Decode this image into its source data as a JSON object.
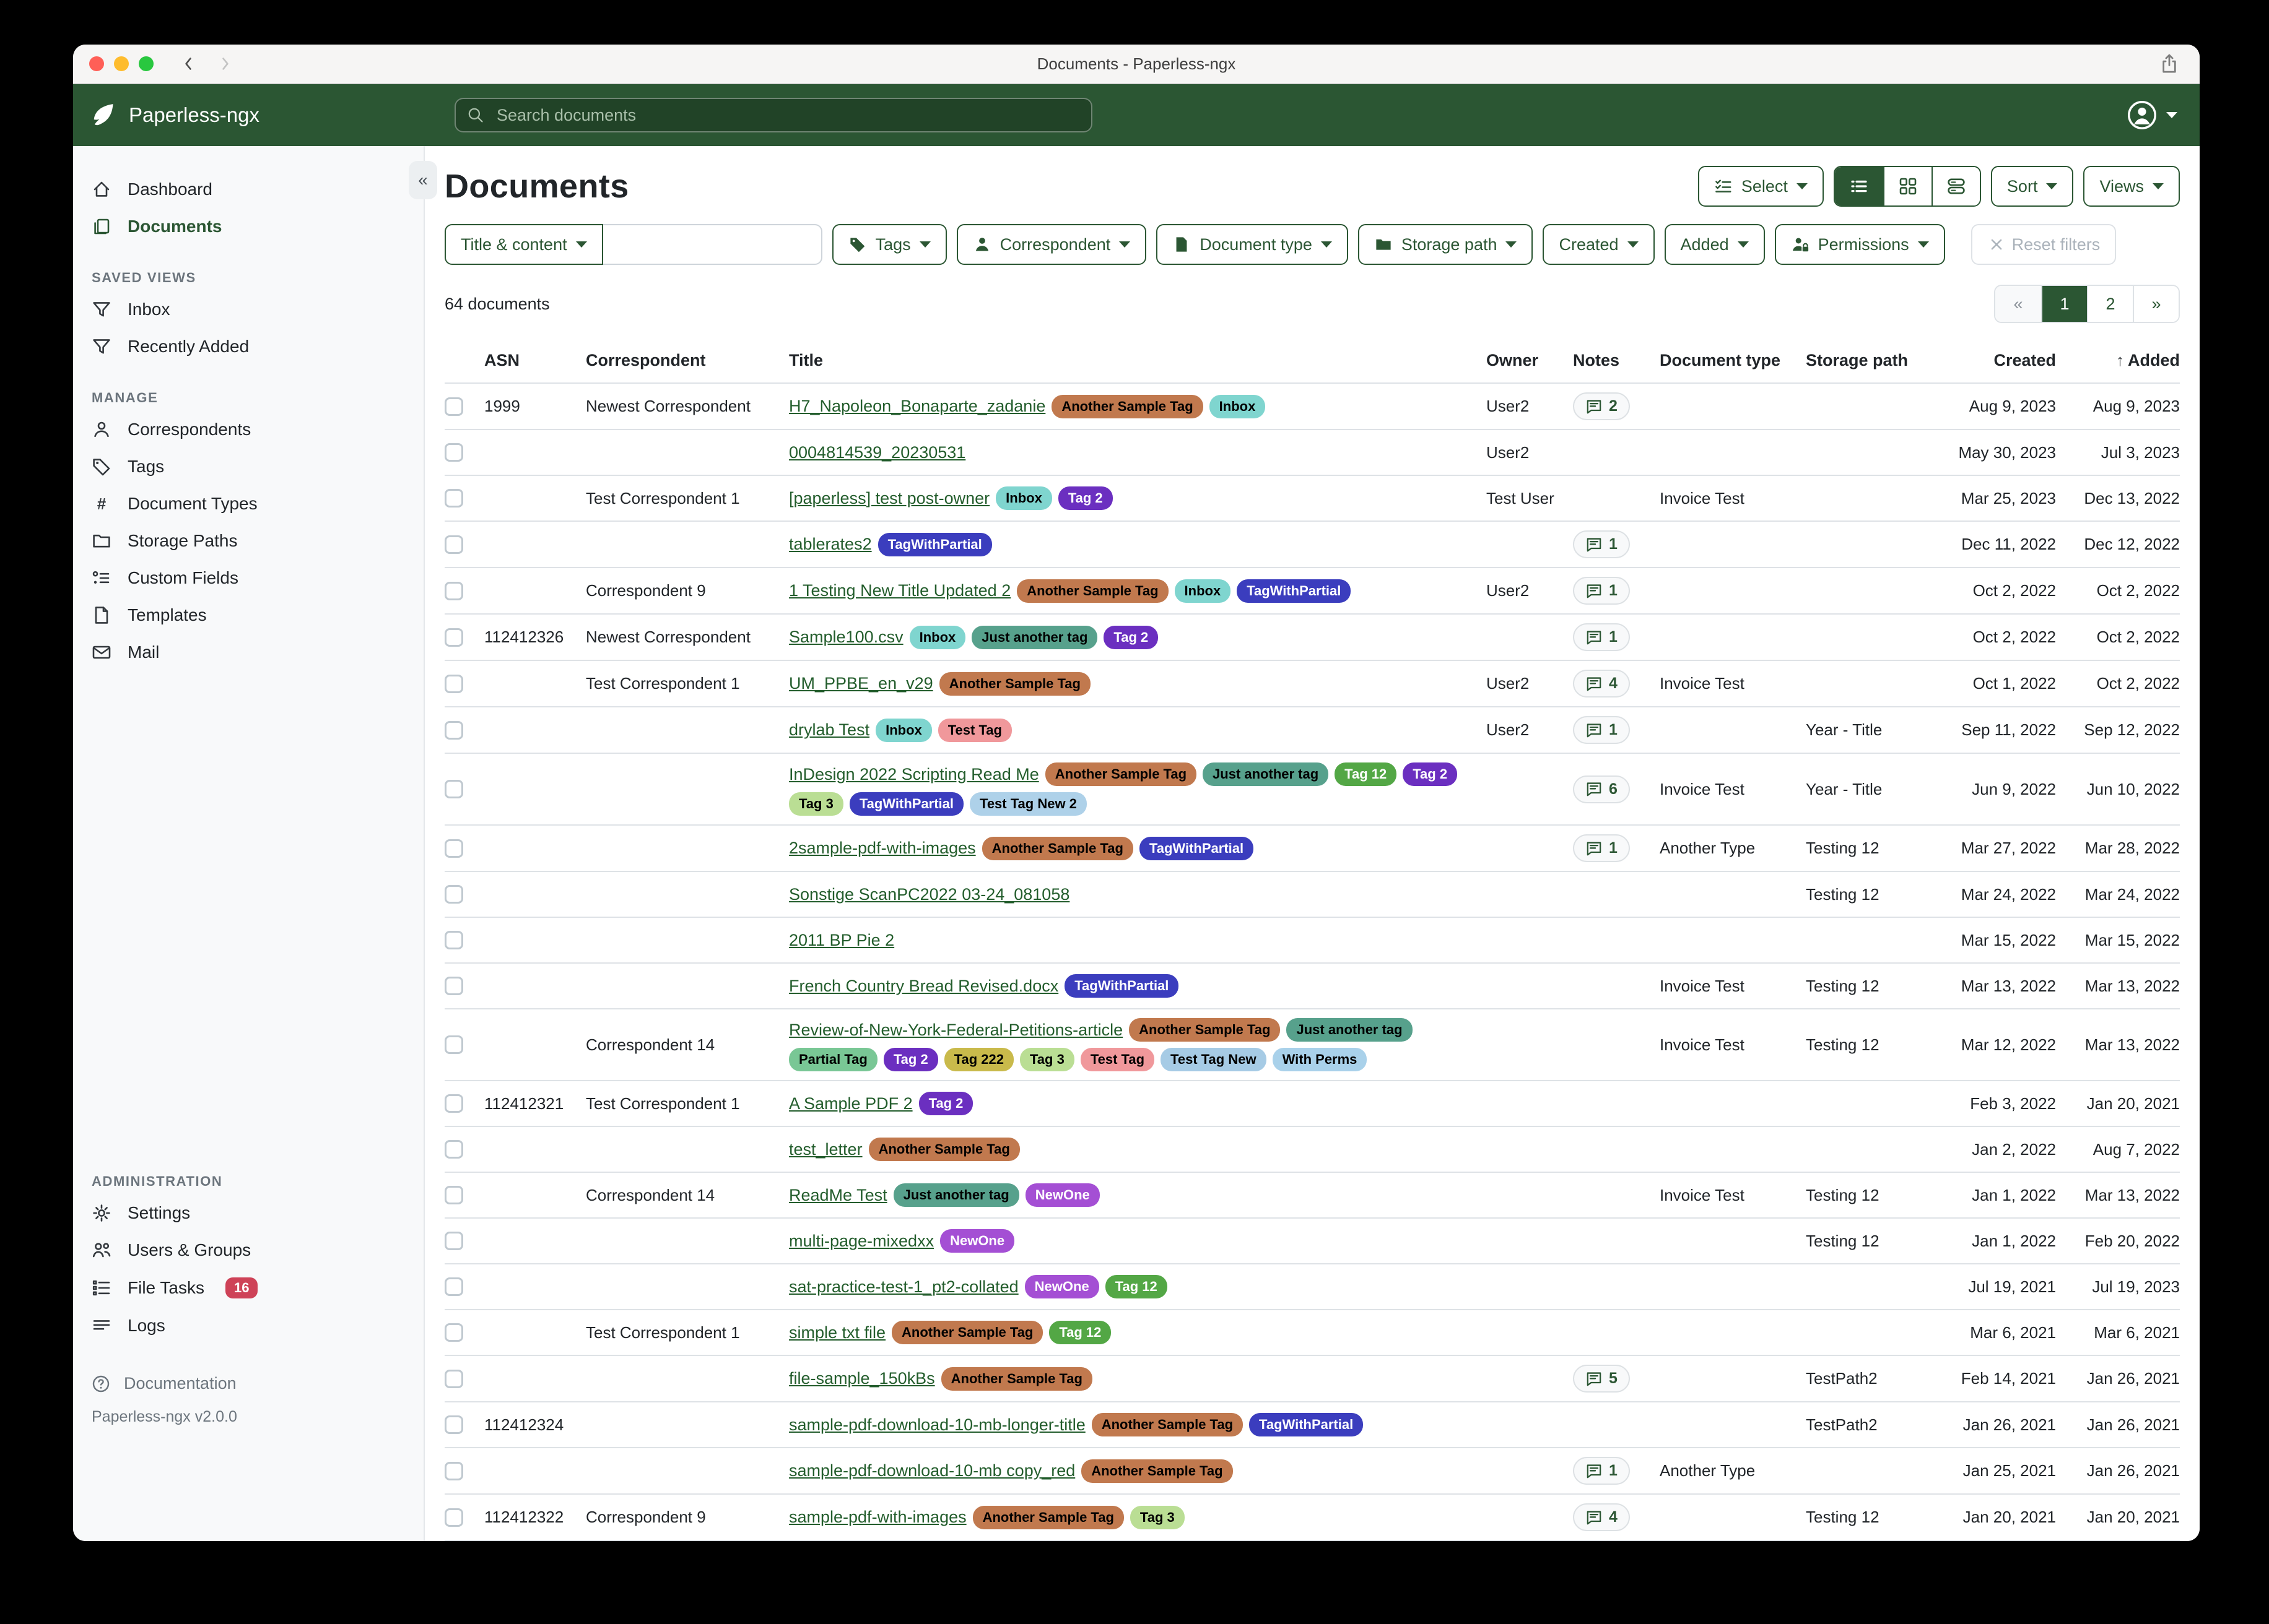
{
  "window": {
    "title": "Documents - Paperless-ngx"
  },
  "navbar": {
    "brand": "Paperless-ngx",
    "search_placeholder": "Search documents"
  },
  "colors": {
    "brand_green": "#2b5633",
    "link_green": "#235d2c",
    "badge_red": "#ce4257"
  },
  "sidebar": {
    "items_top": [
      {
        "label": "Dashboard",
        "icon": "home",
        "active": false
      },
      {
        "label": "Documents",
        "icon": "docs",
        "active": true
      }
    ],
    "sections": [
      {
        "title": "SAVED VIEWS",
        "items": [
          {
            "label": "Inbox",
            "icon": "funnel"
          },
          {
            "label": "Recently Added",
            "icon": "funnel"
          }
        ]
      },
      {
        "title": "MANAGE",
        "items": [
          {
            "label": "Correspondents",
            "icon": "person"
          },
          {
            "label": "Tags",
            "icon": "tag"
          },
          {
            "label": "Document Types",
            "icon": "hash"
          },
          {
            "label": "Storage Paths",
            "icon": "folder"
          },
          {
            "label": "Custom Fields",
            "icon": "fields"
          },
          {
            "label": "Templates",
            "icon": "file"
          },
          {
            "label": "Mail",
            "icon": "envelope"
          }
        ]
      },
      {
        "title": "ADMINISTRATION",
        "items": [
          {
            "label": "Settings",
            "icon": "gear"
          },
          {
            "label": "Users & Groups",
            "icon": "people"
          },
          {
            "label": "File Tasks",
            "icon": "tasks",
            "badge": "16"
          },
          {
            "label": "Logs",
            "icon": "logs"
          }
        ]
      }
    ],
    "footer": {
      "documentation": "Documentation",
      "version": "Paperless-ngx v2.0.0"
    }
  },
  "toolbar": {
    "title": "Documents",
    "select_label": "Select",
    "sort_label": "Sort",
    "views_label": "Views",
    "view_modes": [
      "list-view",
      "grid-view",
      "cards-view"
    ],
    "active_view": "list-view"
  },
  "filters": {
    "field_button": "Title & content",
    "input_value": "",
    "buttons": [
      {
        "label": "Tags",
        "icon": "tag-fill"
      },
      {
        "label": "Correspondent",
        "icon": "person-fill"
      },
      {
        "label": "Document type",
        "icon": "file-fill"
      },
      {
        "label": "Storage path",
        "icon": "folder-fill"
      },
      {
        "label": "Created",
        "icon": null
      },
      {
        "label": "Added",
        "icon": null
      },
      {
        "label": "Permissions",
        "icon": "person-lock"
      }
    ],
    "reset_label": "Reset filters"
  },
  "status": {
    "count_text": "64 documents"
  },
  "pagination": {
    "prev": "«",
    "pages": [
      "1",
      "2"
    ],
    "active": "1",
    "next": "»"
  },
  "tag_colors": {
    "Another Sample Tag": {
      "bg": "#c1794e",
      "fg": "#000000"
    },
    "Inbox": {
      "bg": "#7fd5cf",
      "fg": "#000000"
    },
    "Tag 2": {
      "bg": "#6b2fc0",
      "fg": "#ffffff"
    },
    "TagWithPartial": {
      "bg": "#3b3dbe",
      "fg": "#ffffff"
    },
    "Just another tag": {
      "bg": "#57a18c",
      "fg": "#000000"
    },
    "Tag 12": {
      "bg": "#53a745",
      "fg": "#ffffff"
    },
    "Tag 3": {
      "bg": "#bade94",
      "fg": "#000000"
    },
    "Test Tag New 2": {
      "bg": "#aed1e9",
      "fg": "#000000"
    },
    "Test Tag": {
      "bg": "#f0989b",
      "fg": "#000000"
    },
    "Tag 222": {
      "bg": "#c9ba4b",
      "fg": "#000000"
    },
    "Partial Tag": {
      "bg": "#79c795",
      "fg": "#000000"
    },
    "Test Tag New": {
      "bg": "#a6cbe5",
      "fg": "#000000"
    },
    "With Perms": {
      "bg": "#a9d1ea",
      "fg": "#000000"
    },
    "NewOne": {
      "bg": "#a44fd4",
      "fg": "#ffffff"
    }
  },
  "table": {
    "headers": [
      "ASN",
      "Correspondent",
      "Title",
      "Owner",
      "Notes",
      "Document type",
      "Storage path",
      "Created",
      "Added"
    ],
    "sorted_by": "Added",
    "sort_arrow": "↑",
    "rows": [
      {
        "asn": "1999",
        "correspondent": "Newest Correspondent",
        "title": "H7_Napoleon_Bonaparte_zadanie",
        "tags": [
          "Another Sample Tag",
          "Inbox"
        ],
        "owner": "User2",
        "notes": "2",
        "doc_type": "",
        "storage_path": "",
        "created": "Aug 9, 2023",
        "added": "Aug 9, 2023"
      },
      {
        "asn": "",
        "correspondent": "",
        "title": "0004814539_20230531",
        "tags": [],
        "owner": "User2",
        "notes": "",
        "doc_type": "",
        "storage_path": "",
        "created": "May 30, 2023",
        "added": "Jul 3, 2023"
      },
      {
        "asn": "",
        "correspondent": "Test Correspondent 1",
        "title": "[paperless] test post-owner",
        "tags": [
          "Inbox",
          "Tag 2"
        ],
        "owner": "Test User",
        "notes": "",
        "doc_type": "Invoice Test",
        "storage_path": "",
        "created": "Mar 25, 2023",
        "added": "Dec 13, 2022"
      },
      {
        "asn": "",
        "correspondent": "",
        "title": "tablerates2",
        "tags": [
          "TagWithPartial"
        ],
        "owner": "",
        "notes": "1",
        "doc_type": "",
        "storage_path": "",
        "created": "Dec 11, 2022",
        "added": "Dec 12, 2022"
      },
      {
        "asn": "",
        "correspondent": "Correspondent 9",
        "title": "1 Testing New Title Updated 2",
        "tags": [
          "Another Sample Tag",
          "Inbox",
          "TagWithPartial"
        ],
        "owner": "User2",
        "notes": "1",
        "doc_type": "",
        "storage_path": "",
        "created": "Oct 2, 2022",
        "added": "Oct 2, 2022"
      },
      {
        "asn": "112412326",
        "correspondent": "Newest Correspondent",
        "title": "Sample100.csv",
        "tags": [
          "Inbox",
          "Just another tag",
          "Tag 2"
        ],
        "owner": "",
        "notes": "1",
        "doc_type": "",
        "storage_path": "",
        "created": "Oct 2, 2022",
        "added": "Oct 2, 2022"
      },
      {
        "asn": "",
        "correspondent": "Test Correspondent 1",
        "title": "UM_PPBE_en_v29",
        "tags": [
          "Another Sample Tag"
        ],
        "owner": "User2",
        "notes": "4",
        "doc_type": "Invoice Test",
        "storage_path": "",
        "created": "Oct 1, 2022",
        "added": "Oct 2, 2022"
      },
      {
        "asn": "",
        "correspondent": "",
        "title": "drylab Test",
        "tags": [
          "Inbox",
          "Test Tag"
        ],
        "owner": "User2",
        "notes": "1",
        "doc_type": "",
        "storage_path": "Year - Title",
        "created": "Sep 11, 2022",
        "added": "Sep 12, 2022"
      },
      {
        "asn": "",
        "correspondent": "",
        "title": "InDesign 2022 Scripting Read Me",
        "tags": [
          "Another Sample Tag",
          "Just another tag",
          "Tag 12",
          "Tag 2",
          "Tag 3",
          "TagWithPartial",
          "Test Tag New 2"
        ],
        "owner": "",
        "notes": "6",
        "doc_type": "Invoice Test",
        "storage_path": "Year - Title",
        "created": "Jun 9, 2022",
        "added": "Jun 10, 2022"
      },
      {
        "asn": "",
        "correspondent": "",
        "title": "2sample-pdf-with-images",
        "tags": [
          "Another Sample Tag",
          "TagWithPartial"
        ],
        "owner": "",
        "notes": "1",
        "doc_type": "Another Type",
        "storage_path": "Testing 12",
        "created": "Mar 27, 2022",
        "added": "Mar 28, 2022"
      },
      {
        "asn": "",
        "correspondent": "",
        "title": "Sonstige ScanPC2022 03-24_081058",
        "tags": [],
        "owner": "",
        "notes": "",
        "doc_type": "",
        "storage_path": "Testing 12",
        "created": "Mar 24, 2022",
        "added": "Mar 24, 2022"
      },
      {
        "asn": "",
        "correspondent": "",
        "title": "2011 BP Pie 2",
        "tags": [],
        "owner": "",
        "notes": "",
        "doc_type": "",
        "storage_path": "",
        "created": "Mar 15, 2022",
        "added": "Mar 15, 2022"
      },
      {
        "asn": "",
        "correspondent": "",
        "title": "French Country Bread Revised.docx",
        "tags": [
          "TagWithPartial"
        ],
        "owner": "",
        "notes": "",
        "doc_type": "Invoice Test",
        "storage_path": "Testing 12",
        "created": "Mar 13, 2022",
        "added": "Mar 13, 2022"
      },
      {
        "asn": "",
        "correspondent": "Correspondent 14",
        "title": "Review-of-New-York-Federal-Petitions-article",
        "tags": [
          "Another Sample Tag",
          "Just another tag",
          "Partial Tag",
          "Tag 2",
          "Tag 222",
          "Tag 3",
          "Test Tag",
          "Test Tag New",
          "With Perms"
        ],
        "owner": "",
        "notes": "",
        "doc_type": "Invoice Test",
        "storage_path": "Testing 12",
        "created": "Mar 12, 2022",
        "added": "Mar 13, 2022"
      },
      {
        "asn": "112412321",
        "correspondent": "Test Correspondent 1",
        "title": "A Sample PDF 2",
        "tags": [
          "Tag 2"
        ],
        "owner": "",
        "notes": "",
        "doc_type": "",
        "storage_path": "",
        "created": "Feb 3, 2022",
        "added": "Jan 20, 2021"
      },
      {
        "asn": "",
        "correspondent": "",
        "title": "test_letter",
        "tags": [
          "Another Sample Tag"
        ],
        "owner": "",
        "notes": "",
        "doc_type": "",
        "storage_path": "",
        "created": "Jan 2, 2022",
        "added": "Aug 7, 2022"
      },
      {
        "asn": "",
        "correspondent": "Correspondent 14",
        "title": "ReadMe Test",
        "tags": [
          "Just another tag",
          "NewOne"
        ],
        "owner": "",
        "notes": "",
        "doc_type": "Invoice Test",
        "storage_path": "Testing 12",
        "created": "Jan 1, 2022",
        "added": "Mar 13, 2022"
      },
      {
        "asn": "",
        "correspondent": "",
        "title": "multi-page-mixedxx",
        "tags": [
          "NewOne"
        ],
        "owner": "",
        "notes": "",
        "doc_type": "",
        "storage_path": "Testing 12",
        "created": "Jan 1, 2022",
        "added": "Feb 20, 2022"
      },
      {
        "asn": "",
        "correspondent": "",
        "title": "sat-practice-test-1_pt2-collated",
        "tags": [
          "NewOne",
          "Tag 12"
        ],
        "owner": "",
        "notes": "",
        "doc_type": "",
        "storage_path": "",
        "created": "Jul 19, 2021",
        "added": "Jul 19, 2023"
      },
      {
        "asn": "",
        "correspondent": "Test Correspondent 1",
        "title": "simple txt file",
        "tags": [
          "Another Sample Tag",
          "Tag 12"
        ],
        "owner": "",
        "notes": "",
        "doc_type": "",
        "storage_path": "",
        "created": "Mar 6, 2021",
        "added": "Mar 6, 2021"
      },
      {
        "asn": "",
        "correspondent": "",
        "title": "file-sample_150kBs",
        "tags": [
          "Another Sample Tag"
        ],
        "owner": "",
        "notes": "5",
        "doc_type": "",
        "storage_path": "TestPath2",
        "created": "Feb 14, 2021",
        "added": "Jan 26, 2021"
      },
      {
        "asn": "112412324",
        "correspondent": "",
        "title": "sample-pdf-download-10-mb-longer-title",
        "tags": [
          "Another Sample Tag",
          "TagWithPartial"
        ],
        "owner": "",
        "notes": "",
        "doc_type": "",
        "storage_path": "TestPath2",
        "created": "Jan 26, 2021",
        "added": "Jan 26, 2021"
      },
      {
        "asn": "",
        "correspondent": "",
        "title": "sample-pdf-download-10-mb copy_red",
        "tags": [
          "Another Sample Tag"
        ],
        "owner": "",
        "notes": "1",
        "doc_type": "Another Type",
        "storage_path": "",
        "created": "Jan 25, 2021",
        "added": "Jan 26, 2021"
      },
      {
        "asn": "112412322",
        "correspondent": "Correspondent 9",
        "title": "sample-pdf-with-images",
        "tags": [
          "Another Sample Tag",
          "Tag 3"
        ],
        "owner": "",
        "notes": "4",
        "doc_type": "",
        "storage_path": "Testing 12",
        "created": "Jan 20, 2021",
        "added": "Jan 20, 2021"
      }
    ]
  }
}
